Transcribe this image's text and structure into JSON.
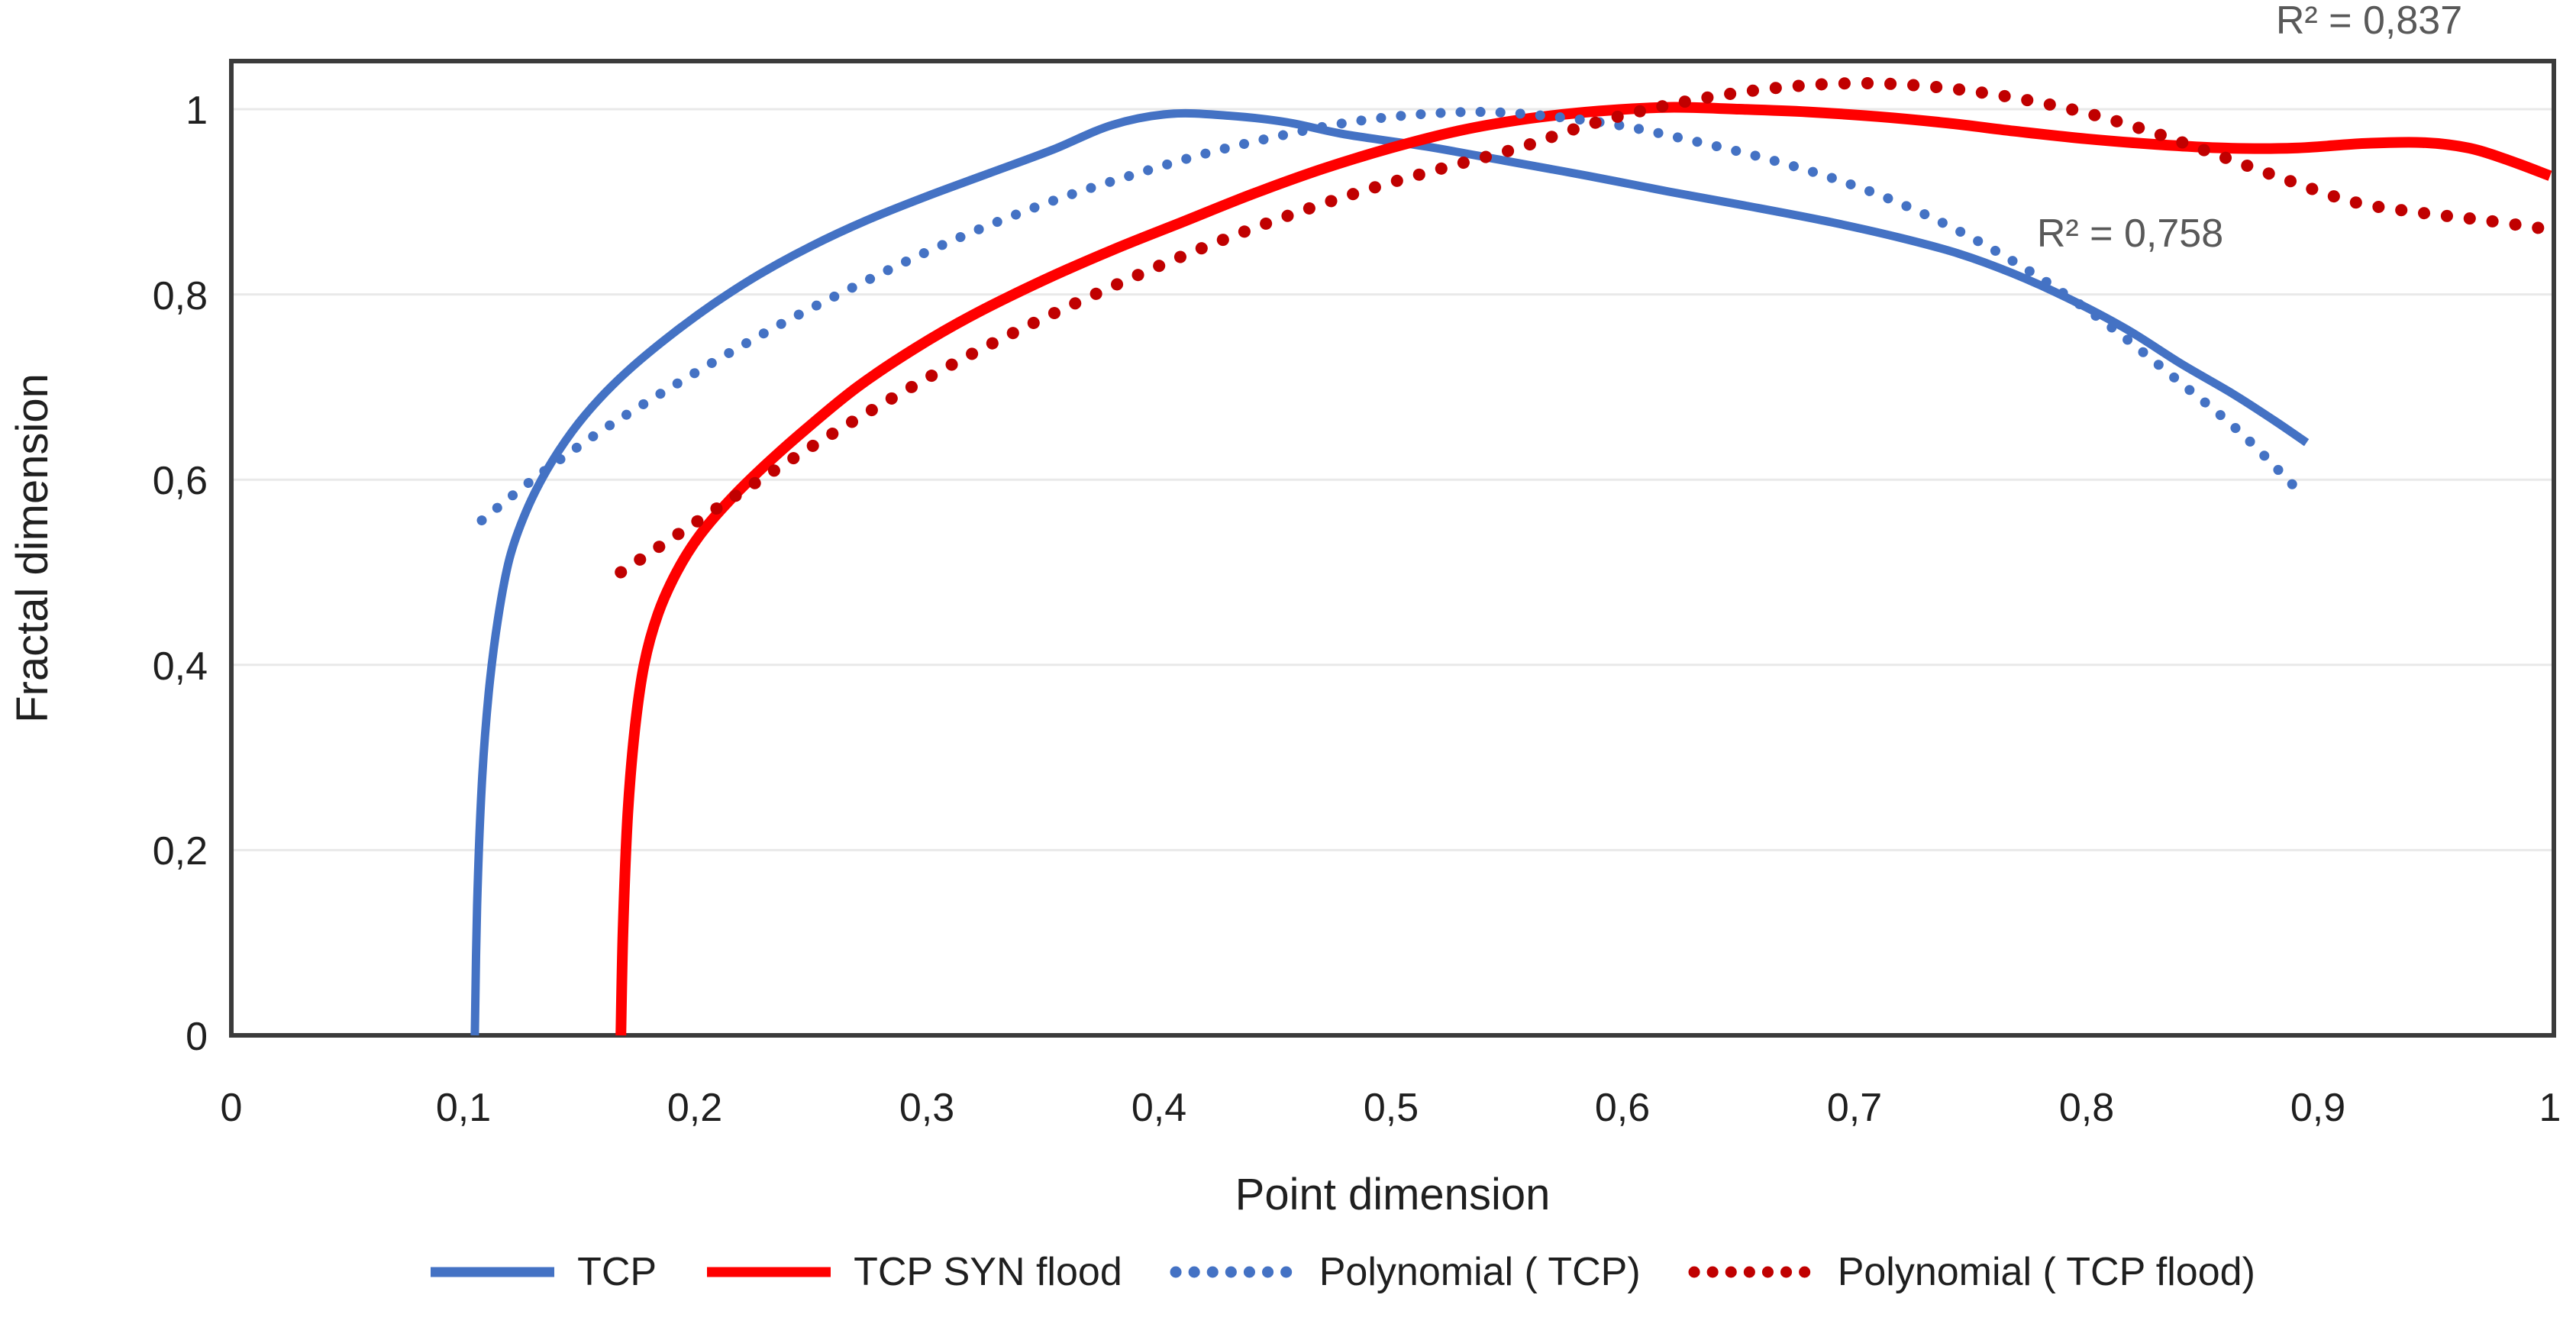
{
  "chart_data": {
    "type": "line",
    "xlabel": "Point dimension",
    "ylabel": "Fractal dimension",
    "xlim": [
      0,
      1
    ],
    "ylim": [
      0,
      1.05
    ],
    "grid": "horizontal-only",
    "legend_position": "bottom",
    "x_ticks": {
      "values": [
        0,
        0.1,
        0.2,
        0.3,
        0.4,
        0.5,
        0.6,
        0.7,
        0.8,
        0.9,
        1
      ],
      "labels": [
        "0",
        "0,1",
        "0,2",
        "0,3",
        "0,4",
        "0,5",
        "0,6",
        "0,7",
        "0,8",
        "0,9",
        "1"
      ]
    },
    "y_ticks": {
      "values": [
        0,
        0.2,
        0.4,
        0.6,
        0.8,
        1
      ],
      "labels": [
        "0",
        "0,2",
        "0,4",
        "0,6",
        "0,8",
        "1"
      ]
    },
    "series": [
      {
        "name": "TCP",
        "style": "solid",
        "color": "#4472C4",
        "points": [
          [
            0.105,
            0
          ],
          [
            0.106,
            0.14
          ],
          [
            0.108,
            0.27
          ],
          [
            0.111,
            0.37
          ],
          [
            0.115,
            0.45
          ],
          [
            0.12,
            0.515
          ],
          [
            0.127,
            0.565
          ],
          [
            0.136,
            0.61
          ],
          [
            0.147,
            0.652
          ],
          [
            0.159,
            0.688
          ],
          [
            0.173,
            0.722
          ],
          [
            0.19,
            0.757
          ],
          [
            0.208,
            0.79
          ],
          [
            0.228,
            0.822
          ],
          [
            0.25,
            0.852
          ],
          [
            0.274,
            0.88
          ],
          [
            0.3,
            0.906
          ],
          [
            0.327,
            0.931
          ],
          [
            0.354,
            0.956
          ],
          [
            0.38,
            0.983
          ],
          [
            0.405,
            0.995
          ],
          [
            0.43,
            0.993
          ],
          [
            0.455,
            0.986
          ],
          [
            0.48,
            0.973
          ],
          [
            0.517,
            0.959
          ],
          [
            0.55,
            0.944
          ],
          [
            0.585,
            0.928
          ],
          [
            0.62,
            0.911
          ],
          [
            0.657,
            0.894
          ],
          [
            0.69,
            0.878
          ],
          [
            0.72,
            0.861
          ],
          [
            0.745,
            0.844
          ],
          [
            0.768,
            0.823
          ],
          [
            0.792,
            0.796
          ],
          [
            0.817,
            0.763
          ],
          [
            0.841,
            0.725
          ],
          [
            0.863,
            0.693
          ],
          [
            0.881,
            0.664
          ],
          [
            0.895,
            0.64
          ]
        ]
      },
      {
        "name": "TCP SYN flood",
        "style": "solid",
        "color": "#FF0000",
        "points": [
          [
            0.168,
            0
          ],
          [
            0.169,
            0.12
          ],
          [
            0.171,
            0.24
          ],
          [
            0.174,
            0.33
          ],
          [
            0.178,
            0.4
          ],
          [
            0.184,
            0.455
          ],
          [
            0.192,
            0.5
          ],
          [
            0.202,
            0.54
          ],
          [
            0.215,
            0.578
          ],
          [
            0.23,
            0.615
          ],
          [
            0.248,
            0.655
          ],
          [
            0.27,
            0.7
          ],
          [
            0.295,
            0.742
          ],
          [
            0.32,
            0.778
          ],
          [
            0.35,
            0.815
          ],
          [
            0.38,
            0.848
          ],
          [
            0.41,
            0.878
          ],
          [
            0.44,
            0.908
          ],
          [
            0.47,
            0.935
          ],
          [
            0.5,
            0.958
          ],
          [
            0.53,
            0.977
          ],
          [
            0.56,
            0.99
          ],
          [
            0.59,
            0.998
          ],
          [
            0.62,
            1.002
          ],
          [
            0.65,
            1.0
          ],
          [
            0.68,
            0.997
          ],
          [
            0.71,
            0.992
          ],
          [
            0.74,
            0.985
          ],
          [
            0.77,
            0.976
          ],
          [
            0.8,
            0.968
          ],
          [
            0.83,
            0.962
          ],
          [
            0.86,
            0.958
          ],
          [
            0.89,
            0.958
          ],
          [
            0.92,
            0.963
          ],
          [
            0.945,
            0.964
          ],
          [
            0.965,
            0.958
          ],
          [
            0.982,
            0.945
          ],
          [
            1.0,
            0.928
          ]
        ]
      },
      {
        "name": "Polynomial ( TCP)",
        "style": "dotted",
        "color": "#4472C4",
        "points": [
          [
            0.108,
            0.556
          ],
          [
            0.13,
            0.6
          ],
          [
            0.155,
            0.645
          ],
          [
            0.18,
            0.685
          ],
          [
            0.21,
            0.73
          ],
          [
            0.24,
            0.772
          ],
          [
            0.27,
            0.81
          ],
          [
            0.3,
            0.846
          ],
          [
            0.33,
            0.878
          ],
          [
            0.36,
            0.906
          ],
          [
            0.39,
            0.93
          ],
          [
            0.42,
            0.952
          ],
          [
            0.45,
            0.97
          ],
          [
            0.48,
            0.985
          ],
          [
            0.51,
            0.994
          ],
          [
            0.54,
            0.997
          ],
          [
            0.57,
            0.992
          ],
          [
            0.6,
            0.982
          ],
          [
            0.63,
            0.966
          ],
          [
            0.66,
            0.948
          ],
          [
            0.69,
            0.926
          ],
          [
            0.72,
            0.898
          ],
          [
            0.75,
            0.862
          ],
          [
            0.78,
            0.818
          ],
          [
            0.81,
            0.766
          ],
          [
            0.84,
            0.706
          ],
          [
            0.866,
            0.652
          ],
          [
            0.89,
            0.592
          ]
        ]
      },
      {
        "name": "Polynomial ( TCP flood)",
        "style": "dotted",
        "color": "#C00000",
        "points": [
          [
            0.168,
            0.5
          ],
          [
            0.195,
            0.545
          ],
          [
            0.225,
            0.595
          ],
          [
            0.255,
            0.643
          ],
          [
            0.285,
            0.688
          ],
          [
            0.315,
            0.73
          ],
          [
            0.345,
            0.768
          ],
          [
            0.375,
            0.803
          ],
          [
            0.405,
            0.836
          ],
          [
            0.435,
            0.866
          ],
          [
            0.465,
            0.893
          ],
          [
            0.495,
            0.917
          ],
          [
            0.525,
            0.938
          ],
          [
            0.555,
            0.958
          ],
          [
            0.585,
            0.983
          ],
          [
            0.615,
            1.002
          ],
          [
            0.645,
            1.016
          ],
          [
            0.675,
            1.025
          ],
          [
            0.705,
            1.028
          ],
          [
            0.735,
            1.024
          ],
          [
            0.765,
            1.014
          ],
          [
            0.795,
            0.999
          ],
          [
            0.825,
            0.978
          ],
          [
            0.855,
            0.952
          ],
          [
            0.885,
            0.925
          ],
          [
            0.915,
            0.9
          ],
          [
            0.945,
            0.888
          ],
          [
            0.972,
            0.88
          ],
          [
            1.0,
            0.87
          ]
        ]
      }
    ],
    "annotations": [
      {
        "text": "R² = 0,837",
        "x": 0.922,
        "y": 1.082
      },
      {
        "text": "R² = 0,758",
        "x": 0.819,
        "y": 0.852
      }
    ],
    "colors": {
      "background": "#FFFFFF",
      "plot_border": "#3B3B3B",
      "gridline": "#E9E9E9",
      "axis_text": "#1F1F1F",
      "annotation_text": "#595959"
    }
  }
}
